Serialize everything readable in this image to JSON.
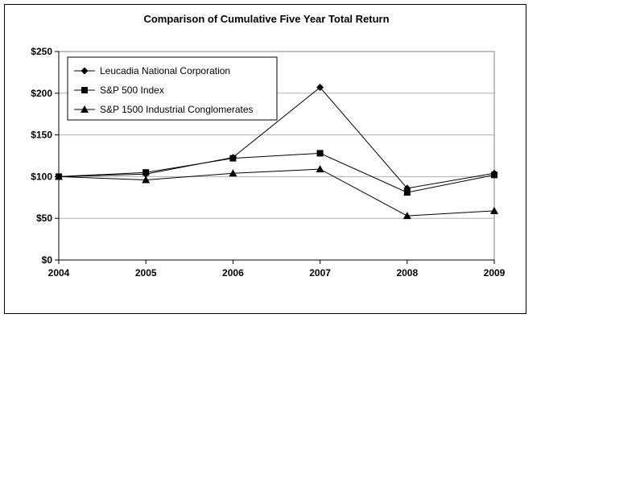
{
  "chart_data": {
    "type": "line",
    "title": "Comparison of Cumulative Five Year Total Return",
    "xlabel": "",
    "ylabel": "",
    "categories": [
      "2004",
      "2005",
      "2006",
      "2007",
      "2008",
      "2009"
    ],
    "ylim": [
      0,
      250
    ],
    "yticks": [
      {
        "value": 0,
        "label": "$0"
      },
      {
        "value": 50,
        "label": "$50"
      },
      {
        "value": 100,
        "label": "$100"
      },
      {
        "value": 150,
        "label": "$150"
      },
      {
        "value": 200,
        "label": "$200"
      },
      {
        "value": 250,
        "label": "$250"
      }
    ],
    "grid": true,
    "legend_position": "top-left",
    "series": [
      {
        "name": "Leucadia National Corporation",
        "marker": "diamond",
        "color": "#000000",
        "values": [
          100,
          103,
          123,
          207,
          86,
          104
        ]
      },
      {
        "name": "S&P 500 Index",
        "marker": "square",
        "color": "#000000",
        "values": [
          100,
          105,
          122,
          128,
          81,
          102
        ]
      },
      {
        "name": "S&P 1500 Industrial Conglomerates",
        "marker": "triangle",
        "color": "#000000",
        "values": [
          100,
          96,
          104,
          109,
          53,
          59
        ]
      }
    ]
  }
}
